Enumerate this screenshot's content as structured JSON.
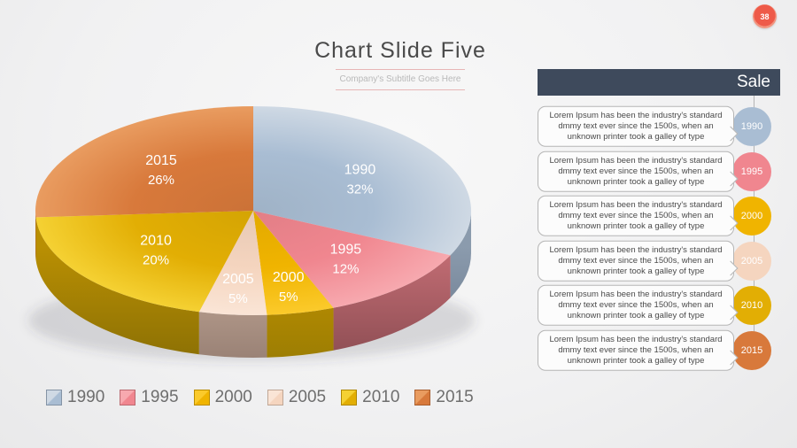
{
  "slide": {
    "page_number": "38"
  },
  "header": {
    "title": "Chart Slide Five",
    "subtitle": "Company's Subtitle Goes Here"
  },
  "chart_data": {
    "type": "pie",
    "style": "3d",
    "title": "Chart Slide Five",
    "unit": "%",
    "direction": "clockwise",
    "start_angle_deg": -90,
    "legend_position": "bottom",
    "labels_on_slices": true,
    "categories": [
      "1990",
      "1995",
      "2000",
      "2005",
      "2010",
      "2015"
    ],
    "values": [
      32,
      12,
      5,
      5,
      20,
      26
    ],
    "slices": [
      {
        "label": "1990",
        "value": 32,
        "color": "#a9bdd3",
        "color_light": "#cfd9e4",
        "rim_color": "#67768b"
      },
      {
        "label": "1995",
        "value": 12,
        "color": "#f0868f",
        "color_light": "#f7a9af",
        "rim_color": "#8e4e54"
      },
      {
        "label": "2000",
        "value": 5,
        "color": "#f0b400",
        "color_light": "#fbca2b",
        "rim_color": "#9d7e03"
      },
      {
        "label": "2005",
        "value": 5,
        "color": "#f5d5bf",
        "color_light": "#fae5d6",
        "rim_color": "#9a8276"
      },
      {
        "label": "2010",
        "value": 20,
        "color": "#e2ae04",
        "color_light": "#f5d133",
        "rim_color": "#8d7104"
      },
      {
        "label": "2015",
        "value": 26,
        "color": "#d8793b",
        "color_light": "#e99c60",
        "rim_color": "#8a4a20"
      }
    ]
  },
  "sale_panel": {
    "title": "Sale",
    "header_color": "#3e4a5c",
    "connector_color": "#b5b5b5",
    "items": [
      {
        "year": "1990",
        "color": "#a9bdd3",
        "text": "Lorem Ipsum has been the industry's standard dmmy text ever since the 1500s, when an unknown printer took a galley of type"
      },
      {
        "year": "1995",
        "color": "#f0868f",
        "text": "Lorem Ipsum has been the industry's standard dmmy text ever since the 1500s, when an unknown printer took a galley of type"
      },
      {
        "year": "2000",
        "color": "#f0b400",
        "text": "Lorem Ipsum has been the industry's standard dmmy text ever since the 1500s, when an unknown printer took a galley of type"
      },
      {
        "year": "2005",
        "color": "#f5d5bf",
        "text": "Lorem Ipsum has been the industry's standard dmmy text ever since the 1500s, when an unknown printer took a galley of type"
      },
      {
        "year": "2010",
        "color": "#e2ae04",
        "text": "Lorem Ipsum has been the industry's standard dmmy text ever since the 1500s, when an unknown printer took a galley of type"
      },
      {
        "year": "2015",
        "color": "#d8793b",
        "text": "Lorem Ipsum has been the industry's standard dmmy text ever since the 1500s, when an unknown printer took a galley of type"
      }
    ]
  },
  "badge_color": "#ee5a49"
}
